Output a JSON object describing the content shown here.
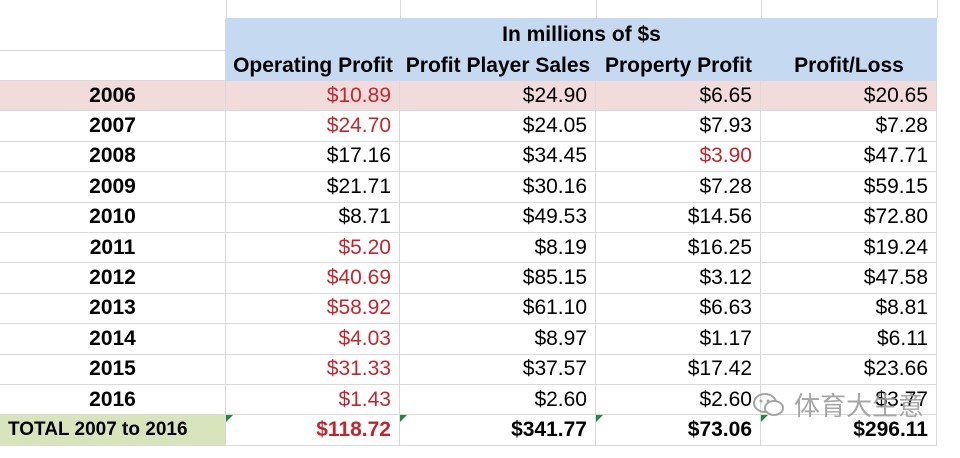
{
  "table": {
    "group_header": "In millions of $s",
    "columns": [
      "Operating Profit",
      "Profit Player Sales",
      "Property Profit",
      "Profit/Loss"
    ],
    "rows": [
      {
        "year": "2006",
        "op": "$10.89",
        "pps": "$24.90",
        "pp": "$6.65",
        "pl": "$20.65",
        "op_neg": true,
        "pp_neg": false
      },
      {
        "year": "2007",
        "op": "$24.70",
        "pps": "$24.05",
        "pp": "$7.93",
        "pl": "$7.28",
        "op_neg": true,
        "pp_neg": false
      },
      {
        "year": "2008",
        "op": "$17.16",
        "pps": "$34.45",
        "pp": "$3.90",
        "pl": "$47.71",
        "op_neg": false,
        "pp_neg": true
      },
      {
        "year": "2009",
        "op": "$21.71",
        "pps": "$30.16",
        "pp": "$7.28",
        "pl": "$59.15",
        "op_neg": false,
        "pp_neg": false
      },
      {
        "year": "2010",
        "op": "$8.71",
        "pps": "$49.53",
        "pp": "$14.56",
        "pl": "$72.80",
        "op_neg": false,
        "pp_neg": false
      },
      {
        "year": "2011",
        "op": "$5.20",
        "pps": "$8.19",
        "pp": "$16.25",
        "pl": "$19.24",
        "op_neg": true,
        "pp_neg": false
      },
      {
        "year": "2012",
        "op": "$40.69",
        "pps": "$85.15",
        "pp": "$3.12",
        "pl": "$47.58",
        "op_neg": true,
        "pp_neg": false
      },
      {
        "year": "2013",
        "op": "$58.92",
        "pps": "$61.10",
        "pp": "$6.63",
        "pl": "$8.81",
        "op_neg": true,
        "pp_neg": false
      },
      {
        "year": "2014",
        "op": "$4.03",
        "pps": "$8.97",
        "pp": "$1.17",
        "pl": "$6.11",
        "op_neg": true,
        "pp_neg": false
      },
      {
        "year": "2015",
        "op": "$31.33",
        "pps": "$37.57",
        "pp": "$17.42",
        "pl": "$23.66",
        "op_neg": true,
        "pp_neg": false
      },
      {
        "year": "2016",
        "op": "$1.43",
        "pps": "$2.60",
        "pp": "$2.60",
        "pl": "$3.77",
        "op_neg": true,
        "pp_neg": false
      }
    ],
    "total": {
      "label": "TOTAL 2007 to 2016",
      "op": "$118.72",
      "pps": "$341.77",
      "pp": "$73.06",
      "pl": "$296.11"
    }
  },
  "colors": {
    "negative": "#c0272d",
    "header_bg": "#c5d9f1",
    "highlight_row": "#f2dcdb",
    "total_label_bg": "#d8e4bc"
  },
  "watermark": {
    "text": "体育大生意",
    "icon": "wechat-icon"
  }
}
